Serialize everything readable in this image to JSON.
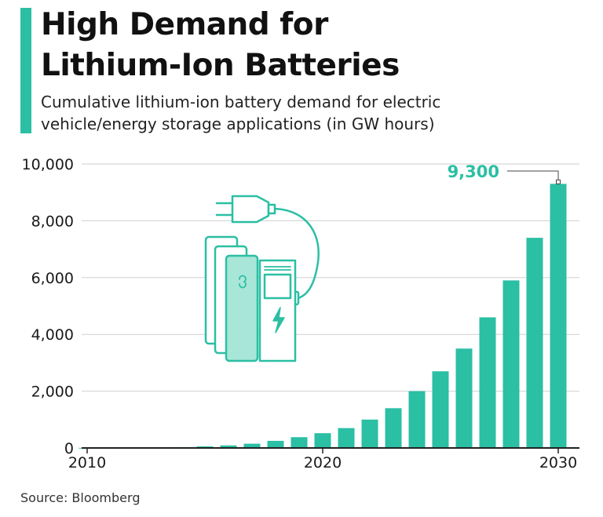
{
  "header": {
    "title_line1": "High Demand for",
    "title_line2": "Lithium-Ion Batteries",
    "subtitle_line1": "Cumulative lithium-ion battery demand for electric",
    "subtitle_line2": "vehicle/energy storage applications (in GW hours)"
  },
  "source": "Source: Bloomberg",
  "colors": {
    "bar": "#2bbfa4",
    "annotation": "#2bbfa4",
    "grid": "#cfcfcf",
    "text": "#1a1a1a"
  },
  "illustration": "battery-charger-icon",
  "chart_data": {
    "type": "bar",
    "title": "High Demand for Lithium-Ion Batteries",
    "xlabel": "",
    "ylabel": "GW hours",
    "categories": [
      "2010",
      "2011",
      "2012",
      "2013",
      "2014",
      "2015",
      "2016",
      "2017",
      "2018",
      "2019",
      "2020",
      "2021",
      "2022",
      "2023",
      "2024",
      "2025",
      "2026",
      "2027",
      "2028",
      "2029",
      "2030"
    ],
    "values": [
      5,
      8,
      12,
      18,
      30,
      55,
      90,
      150,
      250,
      380,
      520,
      700,
      1000,
      1400,
      2000,
      2700,
      3500,
      4600,
      5900,
      7400,
      9300
    ],
    "ylim": [
      0,
      10000
    ],
    "yticks": [
      0,
      2000,
      4000,
      6000,
      8000,
      10000
    ],
    "ytick_labels": [
      "0",
      "2,000",
      "4,000",
      "6,000",
      "8,000",
      "10,000"
    ],
    "xticks": [
      "2010",
      "2020",
      "2030"
    ],
    "grid": true,
    "annotations": [
      {
        "category": "2030",
        "text": "9,300"
      }
    ]
  }
}
